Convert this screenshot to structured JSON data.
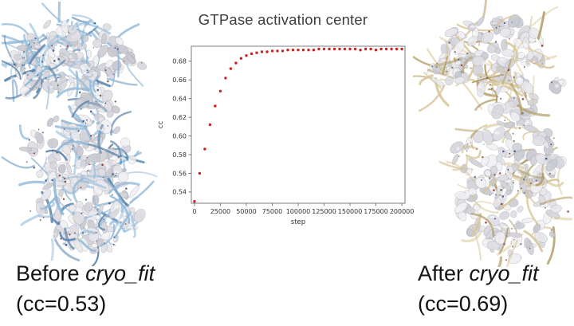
{
  "title": "GTPase activation center",
  "captions": {
    "before": {
      "prefix": "Before ",
      "italic": "cryo_fit",
      "line2": "(cc=0.53)"
    },
    "after": {
      "prefix": "After ",
      "italic": "cryo_fit",
      "line2": "(cc=0.69)"
    }
  },
  "chart_data": {
    "type": "scatter",
    "title": "GTPase activation center",
    "xlabel": "step",
    "ylabel": "cc",
    "xlim": [
      -3000,
      203000
    ],
    "ylim": [
      0.528,
      0.696
    ],
    "xticks": [
      0,
      25000,
      50000,
      75000,
      100000,
      125000,
      150000,
      175000,
      200000
    ],
    "yticks": [
      0.54,
      0.56,
      0.58,
      0.6,
      0.62,
      0.64,
      0.66,
      0.68
    ],
    "grid": false,
    "legend": "none",
    "marker": "dot",
    "marker_color": "#cc2222",
    "x": [
      0,
      5000,
      10000,
      15000,
      20000,
      25000,
      30000,
      35000,
      40000,
      45000,
      50000,
      55000,
      60000,
      65000,
      70000,
      75000,
      80000,
      85000,
      90000,
      95000,
      100000,
      105000,
      110000,
      115000,
      120000,
      125000,
      130000,
      135000,
      140000,
      145000,
      150000,
      155000,
      160000,
      165000,
      170000,
      175000,
      180000,
      185000,
      190000,
      195000,
      200000
    ],
    "y": [
      0.53,
      0.56,
      0.586,
      0.612,
      0.632,
      0.648,
      0.662,
      0.672,
      0.678,
      0.683,
      0.686,
      0.688,
      0.689,
      0.69,
      0.69,
      0.691,
      0.691,
      0.691,
      0.692,
      0.692,
      0.692,
      0.692,
      0.692,
      0.692,
      0.693,
      0.693,
      0.693,
      0.693,
      0.693,
      0.693,
      0.693,
      0.693,
      0.692,
      0.693,
      0.693,
      0.692,
      0.693,
      0.693,
      0.693,
      0.693,
      0.693
    ]
  },
  "molecules": {
    "before": {
      "label": "Before cryo_fit structure (cc=0.53)",
      "surface_color": "#e3e3e8",
      "ribbon_color": "#8fb8d8",
      "ribbon_dark": "#5580a8"
    },
    "after": {
      "label": "After cryo_fit structure (cc=0.69)",
      "surface_color": "#e3e3e8",
      "ribbon_color": "#d8c698",
      "ribbon_dark": "#b09a60"
    }
  }
}
